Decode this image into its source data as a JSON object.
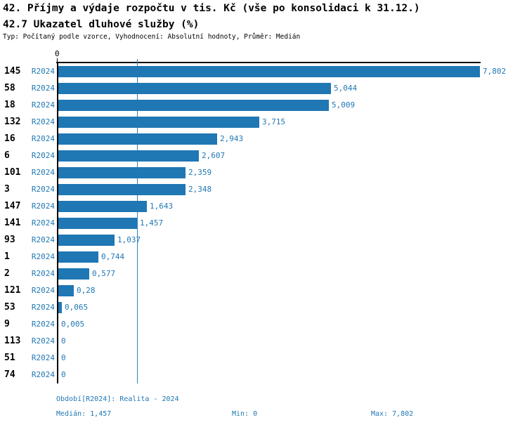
{
  "chart_data": {
    "type": "bar",
    "orientation": "horizontal",
    "title_line1": "42. Příjmy a výdaje rozpočtu v tis. Kč (vše po konsolidaci k 31.12.)",
    "title_line2": "42.7 Ukazatel dluhové služby (%)",
    "subtitle": "Typ: Počítaný podle vzorce, Vyhodnocení: Absolutní hodnoty, Průměr: Medián",
    "series_label": "R2024",
    "categories": [
      "145",
      "58",
      "18",
      "132",
      "16",
      "6",
      "101",
      "3",
      "147",
      "141",
      "93",
      "1",
      "2",
      "121",
      "53",
      "9",
      "113",
      "51",
      "74"
    ],
    "values": [
      7.802,
      5.044,
      5.009,
      3.715,
      2.943,
      2.607,
      2.359,
      2.348,
      1.643,
      1.457,
      1.037,
      0.744,
      0.577,
      0.28,
      0.065,
      0.005,
      0,
      0,
      0
    ],
    "value_labels": [
      "7,802",
      "5,044",
      "5,009",
      "3,715",
      "2,943",
      "2,607",
      "2,359",
      "2,348",
      "1,643",
      "1,457",
      "1,037",
      "0,744",
      "0,577",
      "0,28",
      "0,065",
      "0,005",
      "0",
      "0",
      "0"
    ],
    "xlim": [
      0,
      7.802
    ],
    "x_tick_labels": [
      "0"
    ],
    "median_value": 1.457,
    "grid": "single vertical reference line at median value",
    "legend": null,
    "bar_color": "#1f77b4",
    "text_accent_color": "#1f77b4",
    "median_line_color": "#2e7fb8",
    "axis_color": "#000000"
  },
  "footer": {
    "period": "Období[R2024]: Realita - 2024",
    "median": "Medián: 1,457",
    "min": "Min: 0",
    "max": "Max: 7,802"
  }
}
